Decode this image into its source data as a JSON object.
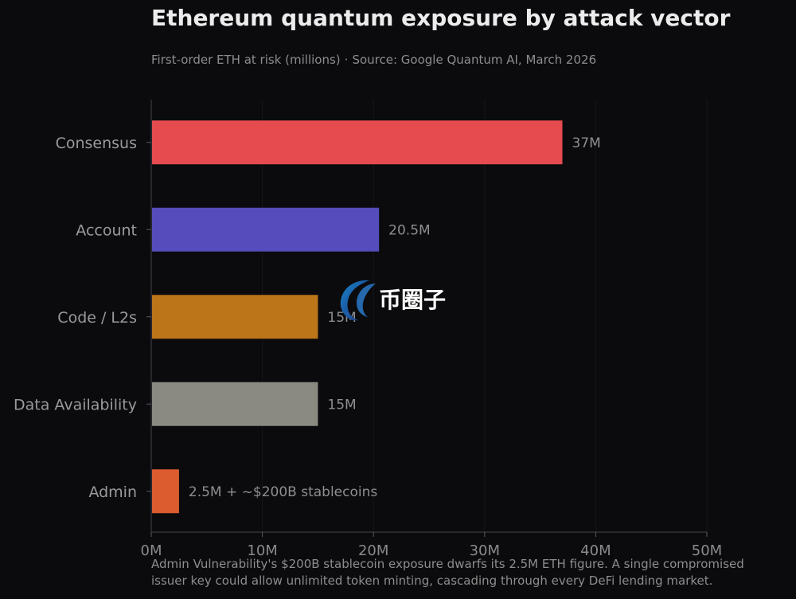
{
  "header": {
    "title": "Ethereum quantum exposure by attack vector",
    "subtitle_measure": "First-order ETH at risk (millions)",
    "subtitle_separator": "·",
    "subtitle_source": "Source: Google Quantum AI, March 2026"
  },
  "caption": {
    "line1": "Admin Vulnerability's $200B stablecoin exposure dwarfs its 2.5M ETH figure. A single compromised",
    "line2": "issuer key could allow unlimited token minting, cascading through every DeFi lending market."
  },
  "watermark": {
    "text": "币圈子"
  },
  "chart_data": {
    "type": "bar",
    "orientation": "horizontal",
    "title": "Ethereum quantum exposure by attack vector",
    "subtitle": "First-order ETH at risk (millions)",
    "xlabel": "",
    "ylabel": "",
    "categories": [
      "Consensus",
      "Account",
      "Code / L2s",
      "Data Availability",
      "Admin"
    ],
    "values": [
      37,
      20.5,
      15,
      15,
      2.5
    ],
    "data_labels": [
      "37M",
      "20.5M",
      "15M",
      "15M",
      "2.5M + ~$200B stablecoins"
    ],
    "colors": [
      "#e54b4f",
      "#574cbb",
      "#bc7519",
      "#8a8a83",
      "#dc5c30"
    ],
    "xlim": [
      0,
      50
    ],
    "x_ticks": [
      0,
      10,
      20,
      30,
      40,
      50
    ],
    "x_tick_labels": [
      "0M",
      "10M",
      "20M",
      "30M",
      "40M",
      "50M"
    ],
    "grid": "subtle vertical",
    "legend": "none"
  }
}
